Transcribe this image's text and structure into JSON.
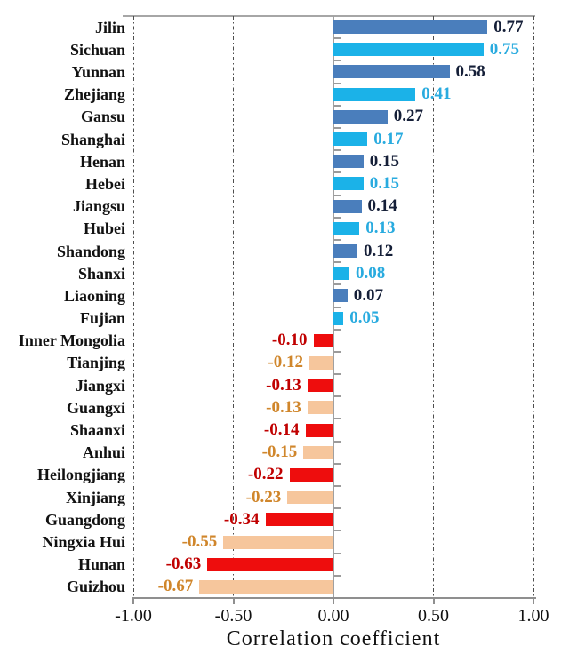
{
  "chart_data": {
    "type": "bar",
    "orientation": "horizontal",
    "title": "",
    "xlabel": "Correlation coefficient",
    "ylabel": "",
    "xlim": [
      -1.0,
      1.0
    ],
    "grid": "vertical dash-dot gridlines at x ticks",
    "legend": null,
    "xticks": [
      {
        "value": -1.0,
        "label": "-1.00"
      },
      {
        "value": -0.5,
        "label": "-0.50"
      },
      {
        "value": 0.0,
        "label": "0.00"
      },
      {
        "value": 0.5,
        "label": "0.50"
      },
      {
        "value": 1.0,
        "label": "1.00"
      }
    ],
    "categories": [
      "Jilin",
      "Sichuan",
      "Yunnan",
      "Zhejiang",
      "Gansu",
      "Shanghai",
      "Henan",
      "Hebei",
      "Jiangsu",
      "Hubei",
      "Shandong",
      "Shanxi",
      "Liaoning",
      "Fujian",
      "Inner Mongolia",
      "Tianjing",
      "Jiangxi",
      "Guangxi",
      "Shaanxi",
      "Anhui",
      "Heilongjiang",
      "Xinjiang",
      "Guangdong",
      "Ningxia Hui",
      "Hunan",
      "Guizhou"
    ],
    "values": [
      0.77,
      0.75,
      0.58,
      0.41,
      0.27,
      0.17,
      0.15,
      0.15,
      0.14,
      0.13,
      0.12,
      0.08,
      0.07,
      0.05,
      -0.1,
      -0.12,
      -0.13,
      -0.13,
      -0.14,
      -0.15,
      -0.22,
      -0.23,
      -0.34,
      -0.55,
      -0.63,
      -0.67
    ],
    "value_labels": [
      "0.77",
      "0.75",
      "0.58",
      "0.41",
      "0.27",
      "0.17",
      "0.15",
      "0.15",
      "0.14",
      "0.13",
      "0.12",
      "0.08",
      "0.07",
      "0.05",
      "-0.10",
      "-0.12",
      "-0.13",
      "-0.13",
      "-0.14",
      "-0.15",
      "-0.22",
      "-0.23",
      "-0.34",
      "-0.55",
      "-0.63",
      "-0.67"
    ],
    "bar_color_keys": [
      "positive_primary",
      "positive_secondary",
      "positive_primary",
      "positive_secondary",
      "positive_primary",
      "positive_secondary",
      "positive_primary",
      "positive_secondary",
      "positive_primary",
      "positive_secondary",
      "positive_primary",
      "positive_secondary",
      "positive_primary",
      "positive_secondary",
      "negative_primary",
      "negative_secondary",
      "negative_primary",
      "negative_secondary",
      "negative_primary",
      "negative_secondary",
      "negative_primary",
      "negative_secondary",
      "negative_primary",
      "negative_secondary",
      "negative_primary",
      "negative_secondary"
    ]
  },
  "colors": {
    "positive_primary": {
      "bar": "#4a7ebc",
      "label": "#151f38"
    },
    "positive_secondary": {
      "bar": "#1bb2e8",
      "label": "#29abdf"
    },
    "negative_primary": {
      "bar": "#ee0d0d",
      "label": "#c00000"
    },
    "negative_secondary": {
      "bar": "#f6c69c",
      "label": "#d0862b"
    },
    "axis": "#9b9b9b",
    "grid": "#4d4d4d",
    "text": "#111111"
  }
}
